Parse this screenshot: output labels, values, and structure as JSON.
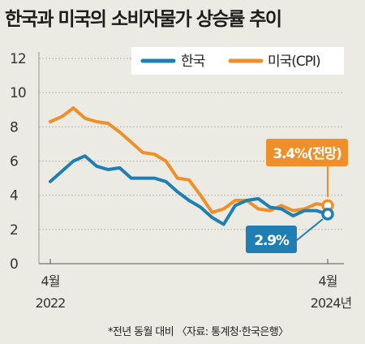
{
  "title": "한국과 미국의 소비자물가 상승률 추이",
  "footnote": "*전년 동월 대비 〈자료: 통계청·한국은행〉",
  "colors": {
    "background": "#ebeae3",
    "korea": "#1f7fb3",
    "us": "#ef8f2a",
    "grid": "#b9b9b3"
  },
  "chart_data": {
    "type": "line",
    "title": "한국과 미국의 소비자물가 상승률 추이",
    "x_start_label": {
      "month": "4월",
      "year": "2022"
    },
    "x_end_label": {
      "month": "4월",
      "year": "2024년"
    },
    "x": [
      "2022-04",
      "2022-05",
      "2022-06",
      "2022-07",
      "2022-08",
      "2022-09",
      "2022-10",
      "2022-11",
      "2022-12",
      "2023-01",
      "2023-02",
      "2023-03",
      "2023-04",
      "2023-05",
      "2023-06",
      "2023-07",
      "2023-08",
      "2023-09",
      "2023-10",
      "2023-11",
      "2023-12",
      "2024-01",
      "2024-02",
      "2024-03",
      "2024-04"
    ],
    "ylim": [
      0,
      12
    ],
    "yticks": [
      0,
      2,
      4,
      6,
      8,
      10,
      12
    ],
    "grid": true,
    "legend_position": "top-right",
    "series": [
      {
        "name": "한국",
        "color": "#1f7fb3",
        "values": [
          4.8,
          5.4,
          6.0,
          6.3,
          5.7,
          5.5,
          5.6,
          5.0,
          5.0,
          5.0,
          4.8,
          4.2,
          3.7,
          3.3,
          2.7,
          2.3,
          3.4,
          3.7,
          3.8,
          3.3,
          3.2,
          2.8,
          3.1,
          3.1,
          2.9
        ],
        "annotation": "2.9%"
      },
      {
        "name": "미국(CPI)",
        "color": "#ef8f2a",
        "values": [
          8.3,
          8.6,
          9.1,
          8.5,
          8.3,
          8.2,
          7.7,
          7.1,
          6.5,
          6.4,
          6.0,
          5.0,
          4.9,
          4.0,
          3.0,
          3.2,
          3.7,
          3.7,
          3.2,
          3.1,
          3.4,
          3.1,
          3.2,
          3.5,
          3.4
        ],
        "annotation": "3.4%(전망)"
      }
    ]
  }
}
